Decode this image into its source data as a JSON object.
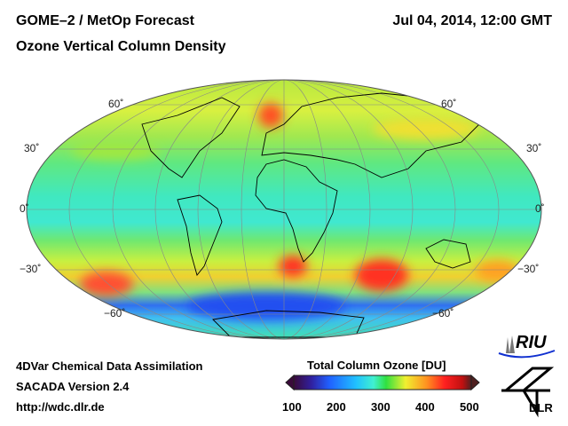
{
  "header": {
    "title": "GOME–2 / MetOp Forecast",
    "subtitle": "Ozone Vertical Column Density",
    "datetime": "Jul 04, 2014, 12:00 GMT"
  },
  "map": {
    "lat_labels_left": [
      "60˚",
      "30˚",
      "0˚",
      "−30˚",
      "−60˚"
    ],
    "lat_labels_right": [
      "60˚",
      "30˚",
      "0˚",
      "−30˚",
      "−60˚"
    ]
  },
  "footer": {
    "line1": "4DVar Chemical Data Assimilation",
    "line2": "SACADA Version 2.4",
    "line3": "http://wdc.dlr.de"
  },
  "colorbar": {
    "title": "Total Column Ozone [DU]",
    "ticks": [
      "100",
      "200",
      "300",
      "400",
      "500"
    ],
    "colors": [
      "#3a0a3a",
      "#3020a0",
      "#2060ff",
      "#20c0ff",
      "#40f0d0",
      "#30e040",
      "#f0f030",
      "#ff9020",
      "#ff2020",
      "#c01010",
      "#502020"
    ]
  },
  "logos": {
    "riu": "RIU",
    "dlr": "DLR"
  }
}
